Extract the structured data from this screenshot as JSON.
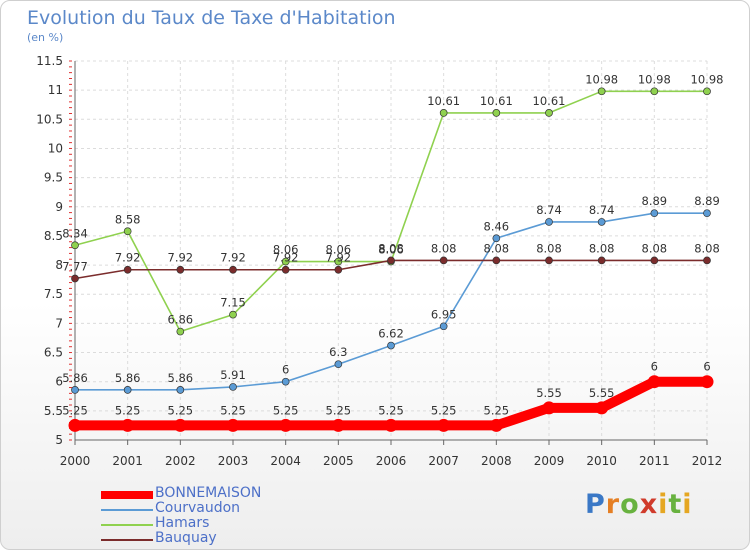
{
  "title": "Evolution du Taux de Taxe d'Habitation",
  "unit_label": "(en %)",
  "logo_text": "Proxiti",
  "chart_data": {
    "type": "line",
    "title": "Evolution du Taux de Taxe d'Habitation",
    "ylabel": "(en %)",
    "xlabel": "",
    "x": [
      "2000",
      "2001",
      "2002",
      "2003",
      "2004",
      "2005",
      "2006",
      "2007",
      "2008",
      "2009",
      "2010",
      "2011",
      "2012"
    ],
    "ylim": [
      5,
      11.5
    ],
    "yticks": [
      "5",
      "5.5",
      "6",
      "6.5",
      "7",
      "7.5",
      "8",
      "8.5",
      "9",
      "9.5",
      "10",
      "10.5",
      "11",
      "11.5"
    ],
    "grid": true,
    "legend_position": "bottom-left",
    "series": [
      {
        "name": "BONNEMAISON",
        "color": "#ff0000",
        "emphasis": true,
        "values": [
          5.25,
          5.25,
          5.25,
          5.25,
          5.25,
          5.25,
          5.25,
          5.25,
          5.25,
          5.55,
          5.55,
          6,
          6
        ],
        "labels": [
          "5.25",
          "5.25",
          "5.25",
          "5.25",
          "5.25",
          "5.25",
          "5.25",
          "5.25",
          "5.25",
          "5.55",
          "5.55",
          "6",
          "6"
        ]
      },
      {
        "name": "Courvaudon",
        "color": "#5b9bd5",
        "emphasis": false,
        "values": [
          5.86,
          5.86,
          5.86,
          5.91,
          6,
          6.3,
          6.62,
          6.95,
          8.46,
          8.74,
          8.74,
          8.89,
          8.89
        ],
        "labels": [
          "5.86",
          "5.86",
          "5.86",
          "5.91",
          "6",
          "6.3",
          "6.62",
          "6.95",
          "8.46",
          "8.74",
          "8.74",
          "8.89",
          "8.89"
        ]
      },
      {
        "name": "Hamars",
        "color": "#8fd14f",
        "emphasis": false,
        "values": [
          8.34,
          8.58,
          6.86,
          7.15,
          8.06,
          8.06,
          8.06,
          10.61,
          10.61,
          10.61,
          10.98,
          10.98,
          10.98
        ],
        "labels": [
          "8.34",
          "8.58",
          "6.86",
          "7.15",
          "8.06",
          "8.06",
          "8.06",
          "10.61",
          "10.61",
          "10.61",
          "10.98",
          "10.98",
          "10.98"
        ]
      },
      {
        "name": "Bauquay",
        "color": "#7b2c2c",
        "emphasis": false,
        "values": [
          7.77,
          7.92,
          7.92,
          7.92,
          7.92,
          7.92,
          8.08,
          8.08,
          8.08,
          8.08,
          8.08,
          8.08,
          8.08
        ],
        "labels": [
          "7.77",
          "7.92",
          "7.92",
          "7.92",
          "7.92",
          "7.92",
          "8.08",
          "8.08",
          "8.08",
          "8.08",
          "8.08",
          "8.08",
          "8.08"
        ]
      }
    ]
  }
}
